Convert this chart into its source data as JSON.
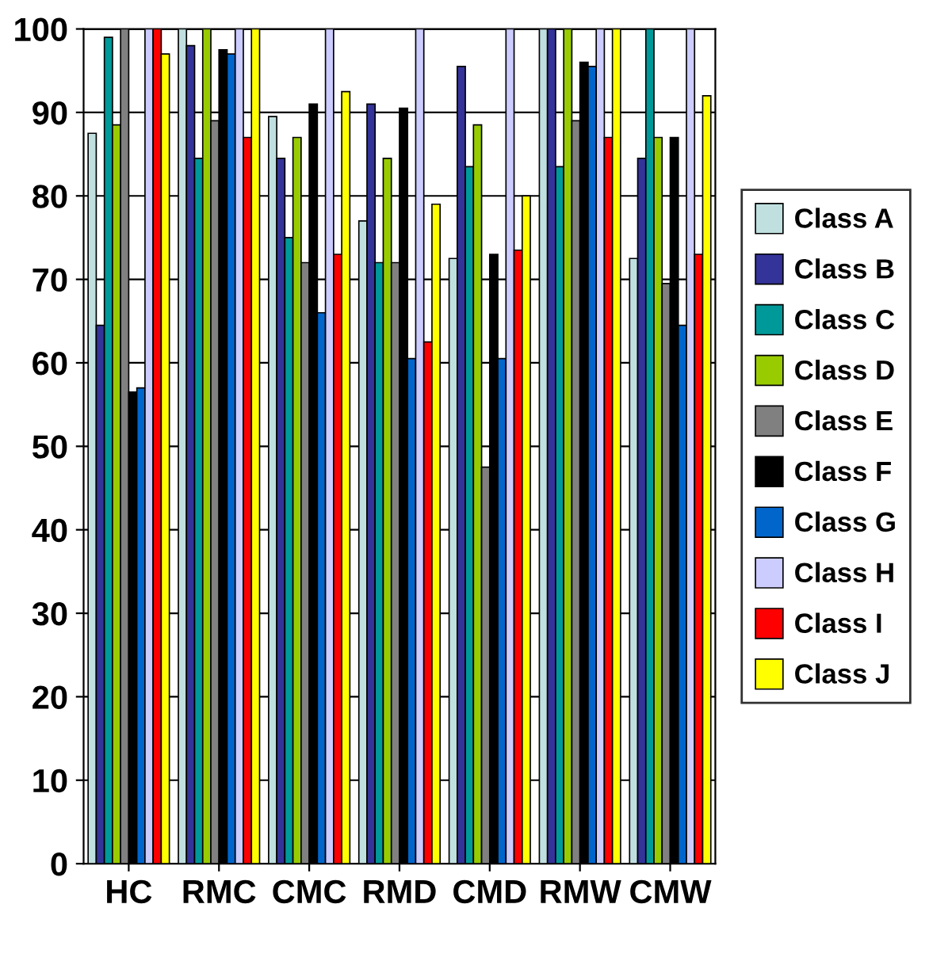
{
  "chart_data": {
    "type": "bar",
    "categories": [
      "HC",
      "RMC",
      "CMC",
      "RMD",
      "CMD",
      "RMW",
      "CMW"
    ],
    "series": [
      {
        "name": "Class A",
        "color": "#c0e0e0",
        "values": [
          87.5,
          100,
          89.5,
          77,
          72.5,
          100,
          72.5
        ]
      },
      {
        "name": "Class B",
        "color": "#333399",
        "values": [
          64.5,
          98,
          84.5,
          91,
          95.5,
          100,
          84.5
        ]
      },
      {
        "name": "Class C",
        "color": "#009999",
        "values": [
          99,
          84.5,
          75,
          72,
          83.5,
          83.5,
          100
        ]
      },
      {
        "name": "Class D",
        "color": "#99cc00",
        "values": [
          88.5,
          100,
          87,
          84.5,
          88.5,
          100,
          87
        ]
      },
      {
        "name": "Class E",
        "color": "#808080",
        "values": [
          100,
          89,
          72,
          72,
          47.5,
          89,
          69.5
        ]
      },
      {
        "name": "Class F",
        "color": "#000000",
        "values": [
          56.5,
          97.5,
          91,
          90.5,
          73,
          96,
          87
        ]
      },
      {
        "name": "Class G",
        "color": "#0066cc",
        "values": [
          57,
          97,
          66,
          60.5,
          60.5,
          95.5,
          64.5
        ]
      },
      {
        "name": "Class H",
        "color": "#ccccff",
        "values": [
          100,
          100,
          100,
          100,
          100,
          100,
          100
        ]
      },
      {
        "name": "Class I",
        "color": "#ff0000",
        "values": [
          100,
          87,
          73,
          62.5,
          73.5,
          87,
          73
        ]
      },
      {
        "name": "Class J",
        "color": "#ffff00",
        "values": [
          97,
          100,
          92.5,
          79,
          80,
          100,
          92
        ]
      }
    ],
    "ylim": [
      0,
      100
    ],
    "yticks": [
      0,
      10,
      20,
      30,
      40,
      50,
      60,
      70,
      80,
      90,
      100
    ],
    "grid": "y",
    "legend": "right"
  }
}
